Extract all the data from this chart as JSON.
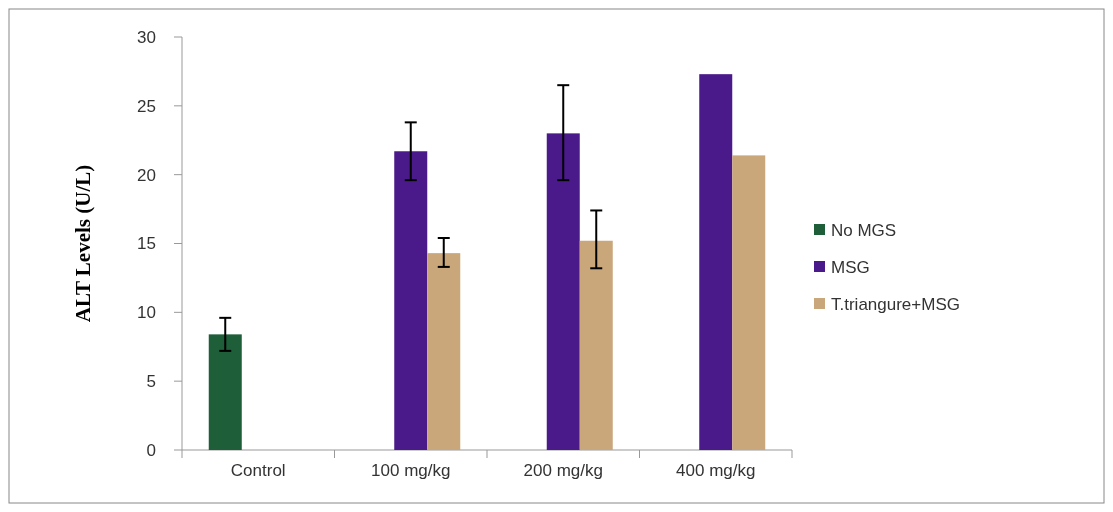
{
  "chart_data": {
    "type": "bar",
    "ylabel": "ALT Levels (U/L)",
    "categories": [
      "Control",
      "100 mg/kg",
      "200 mg/kg",
      "400 mg/kg"
    ],
    "series": [
      {
        "name": "No MGS",
        "color": "#1e5e38",
        "values": [
          8.4,
          null,
          null,
          null
        ],
        "errors": [
          1.2,
          null,
          null,
          null
        ]
      },
      {
        "name": "MSG",
        "color": "#4b1a8a",
        "values": [
          null,
          21.7,
          23.0,
          27.3
        ],
        "errors": [
          null,
          2.1,
          [
            19.6,
            26.5
          ],
          null
        ]
      },
      {
        "name": "T.triangure+MSG",
        "color": "#c9a77a",
        "values": [
          null,
          14.3,
          15.2,
          21.4
        ],
        "errors": [
          null,
          [
            13.3,
            15.4
          ],
          [
            13.2,
            17.4
          ],
          null
        ]
      }
    ],
    "ylim": [
      0,
      30
    ],
    "yticks": [
      0,
      5,
      10,
      15,
      20,
      25,
      30
    ],
    "legend": "right"
  }
}
